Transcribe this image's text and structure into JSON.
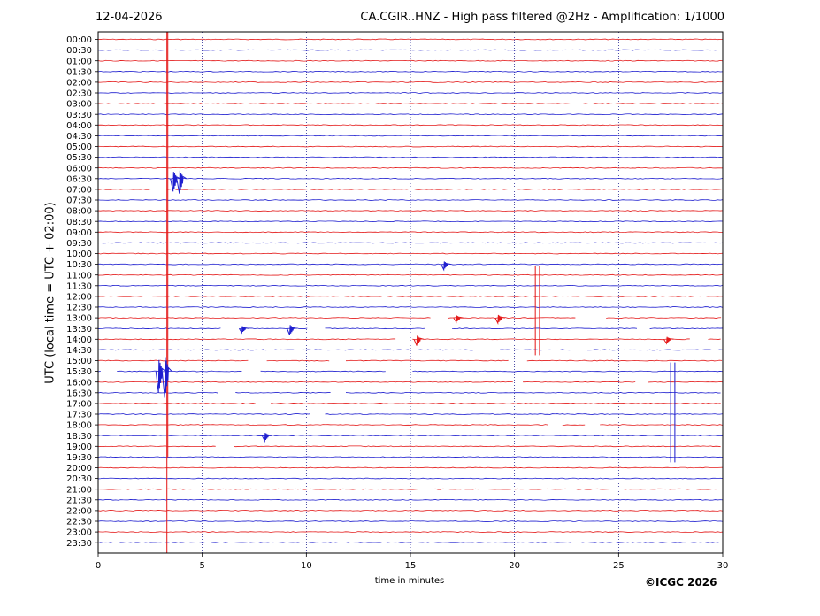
{
  "header": {
    "date": "12-04-2026",
    "title": "CA.CGIR..HNZ - High pass filtered @2Hz - Amplification: 1/1000"
  },
  "footer": {
    "copyright": "©ICGC 2026"
  },
  "colors": {
    "odd_trace": "#e41a1a",
    "even_trace": "#1f1fcf",
    "grid": "#000080",
    "frame": "#000000"
  },
  "chart_data": {
    "type": "line",
    "subtype": "helicorder",
    "xlabel": "time in minutes",
    "ylabel": "UTC (local time = UTC + 02:00)",
    "xlim": [
      0,
      30
    ],
    "x_ticks": [
      0,
      5,
      10,
      15,
      20,
      25,
      30
    ],
    "x_tick_labels": [
      "0",
      "5",
      "10",
      "15",
      "20",
      "25",
      "30"
    ],
    "grid": "vertical dotted at every 5 minutes",
    "trace_colors_alternate": [
      "red",
      "blue"
    ],
    "rows": [
      "00:00",
      "00:30",
      "01:00",
      "01:30",
      "02:00",
      "02:30",
      "03:00",
      "03:30",
      "04:00",
      "04:30",
      "05:00",
      "05:30",
      "06:00",
      "06:30",
      "07:00",
      "07:30",
      "08:00",
      "08:30",
      "09:00",
      "09:30",
      "10:00",
      "10:30",
      "11:00",
      "11:30",
      "12:00",
      "12:30",
      "13:00",
      "13:30",
      "14:00",
      "14:30",
      "15:00",
      "15:30",
      "16:00",
      "16:30",
      "17:00",
      "17:30",
      "18:00",
      "18:30",
      "19:00",
      "19:30",
      "20:00",
      "20:30",
      "21:00",
      "21:30",
      "22:00",
      "22:30",
      "23:00",
      "23:30"
    ],
    "events": [
      {
        "row": "00:00",
        "minute": 3.3,
        "amplitude": "clipped (spans 00:00-23:30)"
      },
      {
        "row": "06:30",
        "minute": 3.6,
        "amplitude": 1.2
      },
      {
        "row": "06:30",
        "minute": 3.9,
        "amplitude": 1.4
      },
      {
        "row": "11:00",
        "minute": 21.0,
        "amplitude": "clipped (spans 11:00-14:30)"
      },
      {
        "row": "11:00",
        "minute": 21.2,
        "amplitude": "clipped (spans 11:00-14:30)"
      },
      {
        "row": "15:30",
        "minute": 2.9,
        "amplitude": 2.0
      },
      {
        "row": "15:30",
        "minute": 3.2,
        "amplitude": 2.5
      },
      {
        "row": "15:30",
        "minute": 27.5,
        "amplitude": "clipped (spans 15:30-19:30)"
      },
      {
        "row": "15:30",
        "minute": 27.7,
        "amplitude": "clipped (spans 15:30-19:30)"
      },
      {
        "row": "13:30",
        "minute": 6.9,
        "amplitude": 0.4
      },
      {
        "row": "13:30",
        "minute": 9.2,
        "amplitude": 0.6
      },
      {
        "row": "13:00",
        "minute": 17.2,
        "amplitude": 0.4
      },
      {
        "row": "13:00",
        "minute": 19.2,
        "amplitude": 0.5
      },
      {
        "row": "14:00",
        "minute": 15.3,
        "amplitude": 0.6
      },
      {
        "row": "14:00",
        "minute": 27.3,
        "amplitude": 0.4
      },
      {
        "row": "18:30",
        "minute": 8.0,
        "amplitude": 0.5
      },
      {
        "row": "10:30",
        "minute": 16.6,
        "amplitude": 0.5
      }
    ],
    "gaps": [
      {
        "row": "07:00",
        "from": 2.6,
        "to": 3.3
      },
      {
        "row": "13:00",
        "from": 16.0,
        "to": 16.8
      },
      {
        "row": "13:00",
        "from": 23.0,
        "to": 24.4
      },
      {
        "row": "13:30",
        "from": 5.9,
        "to": 6.8
      },
      {
        "row": "13:30",
        "from": 10.1,
        "to": 10.9
      },
      {
        "row": "13:30",
        "from": 15.8,
        "to": 17.0
      },
      {
        "row": "13:30",
        "from": 25.9,
        "to": 26.5
      },
      {
        "row": "14:00",
        "from": 14.3,
        "to": 15.1
      },
      {
        "row": "14:00",
        "from": 28.5,
        "to": 29.3
      },
      {
        "row": "14:30",
        "from": 18.1,
        "to": 19.3
      },
      {
        "row": "14:30",
        "from": 22.7,
        "to": 23.5
      },
      {
        "row": "15:00",
        "from": 7.3,
        "to": 8.1
      },
      {
        "row": "15:00",
        "from": 11.2,
        "to": 11.9
      },
      {
        "row": "15:00",
        "from": 19.7,
        "to": 20.6
      },
      {
        "row": "15:30",
        "from": 0.2,
        "to": 0.9
      },
      {
        "row": "15:30",
        "from": 6.9,
        "to": 7.8
      },
      {
        "row": "15:30",
        "from": 13.9,
        "to": 15.1
      },
      {
        "row": "16:00",
        "from": 20.0,
        "to": 20.4
      },
      {
        "row": "16:00",
        "from": 25.9,
        "to": 26.4
      },
      {
        "row": "16:30",
        "from": 5.8,
        "to": 6.6
      },
      {
        "row": "16:30",
        "from": 11.2,
        "to": 11.9
      },
      {
        "row": "17:00",
        "from": 7.6,
        "to": 8.3
      },
      {
        "row": "17:30",
        "from": 10.3,
        "to": 10.9
      },
      {
        "row": "18:00",
        "from": 21.7,
        "to": 22.3
      },
      {
        "row": "18:00",
        "from": 23.4,
        "to": 24.1
      },
      {
        "row": "19:00",
        "from": 5.7,
        "to": 6.5
      }
    ]
  }
}
